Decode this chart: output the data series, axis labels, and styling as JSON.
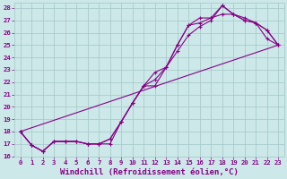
{
  "xlabel": "Windchill (Refroidissement éolien,°C)",
  "xlim": [
    -0.5,
    23.5
  ],
  "ylim": [
    16,
    28.4
  ],
  "yticks": [
    16,
    17,
    18,
    19,
    20,
    21,
    22,
    23,
    24,
    25,
    26,
    27,
    28
  ],
  "xticks": [
    0,
    1,
    2,
    3,
    4,
    5,
    6,
    7,
    8,
    9,
    10,
    11,
    12,
    13,
    14,
    15,
    16,
    17,
    18,
    19,
    20,
    21,
    22,
    23
  ],
  "bg_color": "#cce8e8",
  "grid_color": "#aacccc",
  "line_color": "#880088",
  "lines": [
    {
      "x": [
        0,
        1,
        2,
        3,
        4,
        5,
        6,
        7,
        8,
        9,
        10,
        11,
        12,
        13,
        14,
        15,
        16,
        17,
        18,
        19,
        20,
        21,
        22,
        23
      ],
      "y": [
        18.0,
        16.9,
        16.4,
        17.2,
        17.2,
        17.2,
        17.0,
        17.0,
        17.4,
        18.8,
        20.3,
        21.7,
        21.7,
        23.2,
        25.0,
        26.6,
        27.2,
        27.2,
        28.2,
        27.5,
        27.0,
        26.8,
        26.2,
        25.0
      ],
      "has_markers": true
    },
    {
      "x": [
        0,
        1,
        2,
        3,
        4,
        5,
        6,
        7,
        8,
        9,
        10,
        11,
        12,
        13,
        14,
        15,
        16,
        17,
        18,
        19,
        20,
        21,
        22,
        23
      ],
      "y": [
        18.0,
        16.9,
        16.4,
        17.2,
        17.2,
        17.2,
        17.0,
        17.0,
        17.4,
        18.8,
        20.3,
        21.7,
        22.2,
        23.2,
        24.5,
        25.8,
        26.5,
        27.0,
        28.2,
        27.5,
        27.2,
        26.8,
        25.5,
        25.0
      ],
      "has_markers": true
    },
    {
      "x": [
        0,
        23
      ],
      "y": [
        18.0,
        25.0
      ],
      "has_markers": false
    },
    {
      "x": [
        0,
        1,
        2,
        3,
        4,
        5,
        6,
        7,
        8,
        9,
        10,
        11,
        12,
        13,
        14,
        15,
        16,
        17,
        18,
        19,
        20,
        21,
        22,
        23
      ],
      "y": [
        18.0,
        16.9,
        16.4,
        17.2,
        17.2,
        17.2,
        17.0,
        17.0,
        17.0,
        18.8,
        20.3,
        21.7,
        22.8,
        23.2,
        25.0,
        26.6,
        26.8,
        27.2,
        27.5,
        27.5,
        27.0,
        26.8,
        26.2,
        25.0
      ],
      "has_markers": true
    }
  ],
  "font_color": "#880088",
  "tick_labelsize": 5.2,
  "xlabel_fontsize": 6.5
}
